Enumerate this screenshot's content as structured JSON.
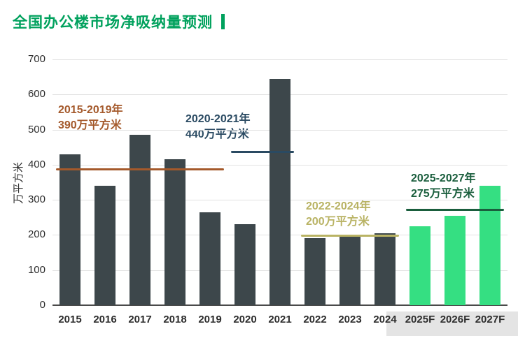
{
  "title": "全国办公楼市场净吸纳量预测",
  "chart_data": {
    "type": "bar",
    "title": "全国办公楼市场净吸纳量预测",
    "xlabel": "",
    "ylabel": "万平方米",
    "ylim": [
      0,
      700
    ],
    "yticks": [
      700,
      600,
      500,
      400,
      300,
      200,
      100,
      0
    ],
    "grid": true,
    "legend_position": "none",
    "categories": [
      "2015",
      "2016",
      "2017",
      "2018",
      "2019",
      "2020",
      "2021",
      "2022",
      "2023",
      "2024",
      "2025F",
      "2026F",
      "2027F"
    ],
    "values": [
      430,
      340,
      485,
      415,
      265,
      230,
      645,
      190,
      195,
      205,
      225,
      255,
      340
    ],
    "forecast_start_index": 10,
    "colors": {
      "historical_bar": "#3d474b",
      "forecast_bar": "#35df82",
      "title_green": "#00a15d",
      "gridline": "#e2e2e2",
      "axis": "#4a4a4a"
    },
    "annotations": [
      {
        "period": "2015-2019年",
        "value_label": "390万平方米",
        "value": 390,
        "from_index": 0,
        "to_index": 4,
        "color": "#a4592b"
      },
      {
        "period": "2020-2021年",
        "value_label": "440万平方米",
        "value": 440,
        "from_index": 5,
        "to_index": 6,
        "color": "#2a4a62"
      },
      {
        "period": "2022-2024年",
        "value_label": "200万平方米",
        "value": 200,
        "from_index": 7,
        "to_index": 9,
        "color": "#b9b364"
      },
      {
        "period": "2025-2027年",
        "value_label": "275万平方米",
        "value": 275,
        "from_index": 10,
        "to_index": 12,
        "color": "#1a5e3d"
      }
    ]
  }
}
